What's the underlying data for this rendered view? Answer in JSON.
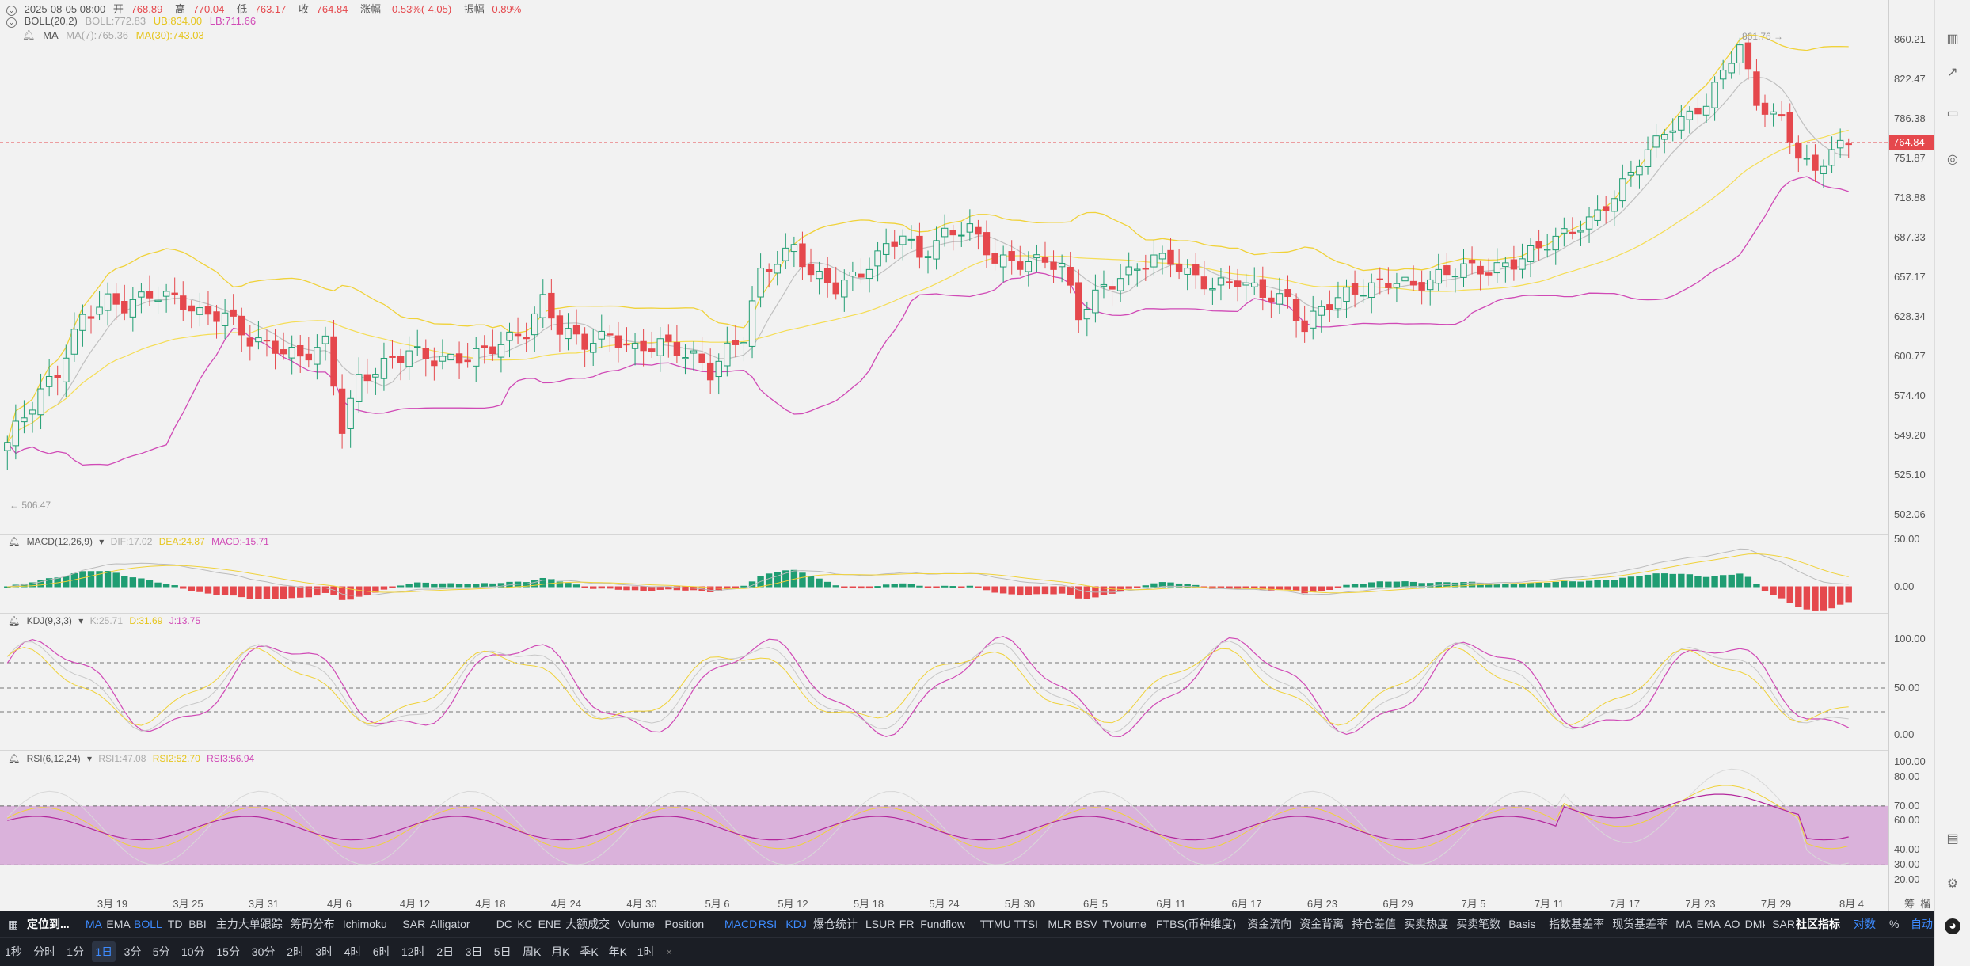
{
  "header": {
    "date": "2025-08-05 08:00",
    "open_label": "开",
    "open": "768.89",
    "high_label": "高",
    "high": "770.04",
    "low_label": "低",
    "low": "763.17",
    "close_label": "收",
    "close": "764.84",
    "change_label": "涨幅",
    "change": "-0.53%(-4.05)",
    "amp_label": "振幅",
    "amp": "0.89%"
  },
  "boll_legend": {
    "name": "BOLL(20,2)",
    "boll": "BOLL:772.83",
    "ub": "UB:834.00",
    "lb": "LB:711.66"
  },
  "ma_legend": {
    "name": "MA",
    "ma7": "MA(7):765.36",
    "ma30": "MA(30):743.03"
  },
  "macd_legend": {
    "name": "MACD(12,26,9)",
    "dif": "DIF:17.02",
    "dea": "DEA:24.87",
    "macd": "MACD:-15.71"
  },
  "kdj_legend": {
    "name": "KDJ(9,3,3)",
    "k": "K:25.71",
    "d": "D:31.69",
    "j": "J:13.75"
  },
  "rsi_legend": {
    "name": "RSI(6,12,24)",
    "r1": "RSI1:47.08",
    "r2": "RSI2:52.70",
    "r3": "RSI3:56.94"
  },
  "price_axis": [
    "860.21",
    "822.47",
    "786.38",
    "751.87",
    "718.88",
    "687.33",
    "657.17",
    "628.34",
    "600.77",
    "574.40",
    "549.20",
    "525.10",
    "502.06"
  ],
  "current_price": "764.84",
  "high_marker": "861.76",
  "low_marker": "506.47",
  "macd_axis": [
    "50.00",
    "0.00"
  ],
  "kdj_axis": [
    "100.00",
    "50.00",
    "0.00"
  ],
  "rsi_axis": [
    "100.00",
    "80.00",
    "70.00",
    "60.00",
    "40.00",
    "30.00",
    "20.00"
  ],
  "date_axis": [
    "3月 19",
    "3月 25",
    "3月 31",
    "4月 6",
    "4月 12",
    "4月 18",
    "4月 24",
    "4月 30",
    "5月 6",
    "5月 12",
    "5月 18",
    "5月 24",
    "5月 30",
    "6月 5",
    "6月 11",
    "6月 17",
    "6月 23",
    "6月 29",
    "7月 5",
    "7月 11",
    "7月 17",
    "7月 23",
    "7月 29",
    "8月 4"
  ],
  "axis_corner": [
    "筹",
    "榴"
  ],
  "toolbar_indicators": {
    "locate": "定位到...",
    "items": [
      "MA",
      "EMA",
      "BOLL",
      "TD",
      "BBI",
      "主力大单跟踪",
      "筹码分布",
      "Ichimoku",
      "SAR",
      "Alligator",
      "DC",
      "KC",
      "ENE",
      "大额成交",
      "Volume",
      "Position",
      "MACD",
      "RSI",
      "KDJ",
      "爆仓统计",
      "LSUR",
      "FR",
      "Fundflow",
      "TTMU",
      "TTSI",
      "MLR",
      "BSV",
      "TVolume",
      "FTBS(币种维度)",
      "资金流向",
      "资金背离",
      "持仓差值",
      "买卖热度",
      "买卖笔数",
      "Basis",
      "指数基差率",
      "现货基差率",
      "MA",
      "EMA",
      "AO",
      "DMI",
      "SAR"
    ],
    "more": "›",
    "community": "社区指标",
    "log": "对数",
    "percent": "%",
    "auto": "自动"
  },
  "timeframes": [
    "1秒",
    "分时",
    "1分",
    "1日",
    "3分",
    "5分",
    "10分",
    "15分",
    "30分",
    "2时",
    "3时",
    "4时",
    "6时",
    "12时",
    "2日",
    "3日",
    "5日",
    "周K",
    "月K",
    "季K",
    "年K",
    "1时"
  ],
  "close_mark": "×",
  "colors": {
    "up": "#1f9d72",
    "down": "#e5484d",
    "boll_band": "#f0d23a",
    "boll_lb": "#d04ab6",
    "ma7": "#b5b5b5",
    "rsi_zone": "#c77ec9",
    "active": "#3d8bff"
  }
}
